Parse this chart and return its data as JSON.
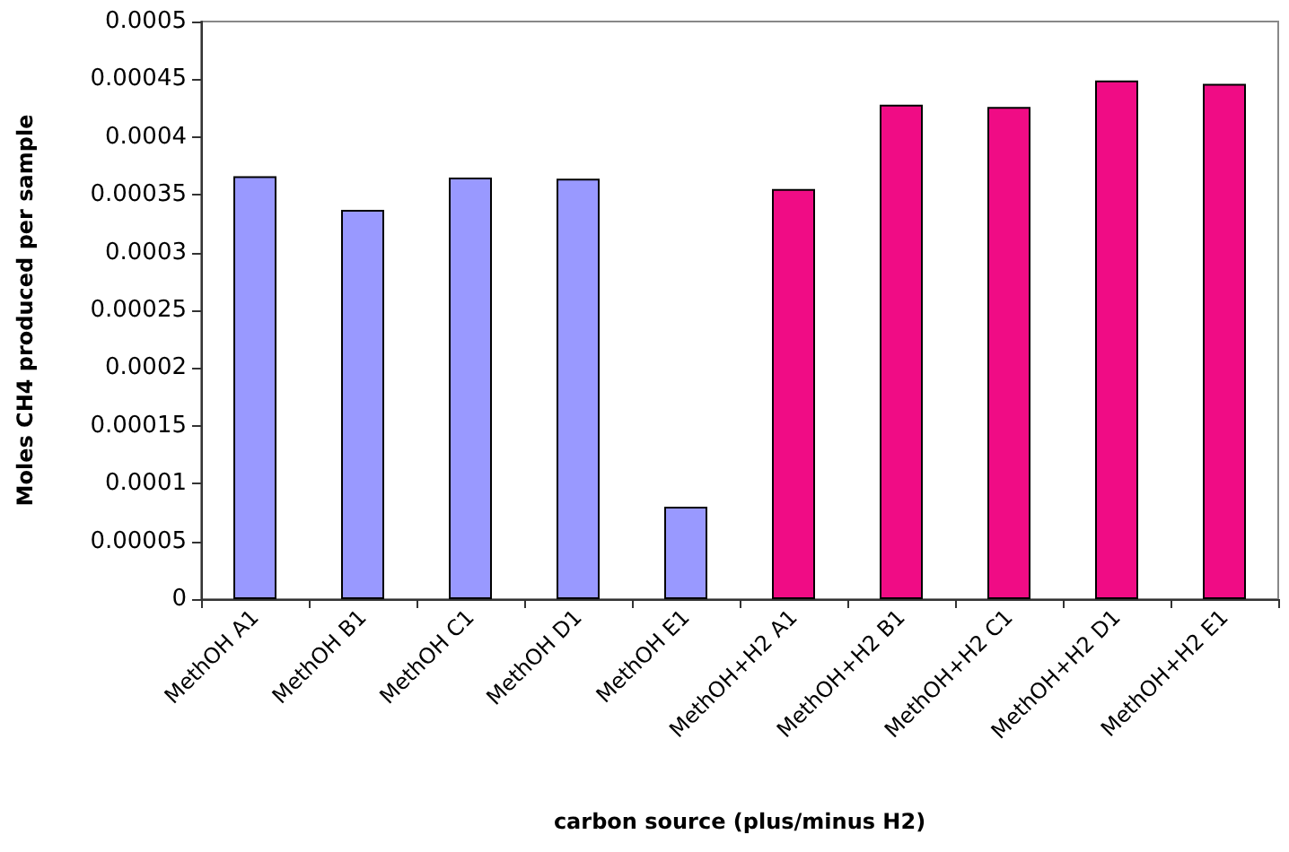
{
  "chart_data": {
    "type": "bar",
    "xlabel": "carbon source (plus/minus H2)",
    "ylabel": "Moles CH4 produced per sample",
    "categories": [
      "MethOH A1",
      "MethOH B1",
      "MethOH C1",
      "MethOH D1",
      "MethOH E1",
      "MethOH+H2 A1",
      "MethOH+H2 B1",
      "MethOH+H2 C1",
      "MethOH+H2 D1",
      "MethOH+H2 E1"
    ],
    "values": [
      0.000366,
      0.000337,
      0.000365,
      0.000364,
      8e-05,
      0.000355,
      0.000428,
      0.000426,
      0.000449,
      0.000446
    ],
    "colors": [
      "#9999ff",
      "#9999ff",
      "#9999ff",
      "#9999ff",
      "#9999ff",
      "#f00c85",
      "#f00c85",
      "#f00c85",
      "#f00c85",
      "#f00c85"
    ],
    "ylim": [
      0,
      0.0005
    ],
    "yticks": [
      0,
      {
        "value": 5e-05,
        "label": "0.00005"
      },
      0.0001,
      0.00015,
      0.0002,
      0.00025,
      0.0003,
      0.00035,
      0.0004,
      0.00045,
      0.0005
    ],
    "grid": false
  }
}
